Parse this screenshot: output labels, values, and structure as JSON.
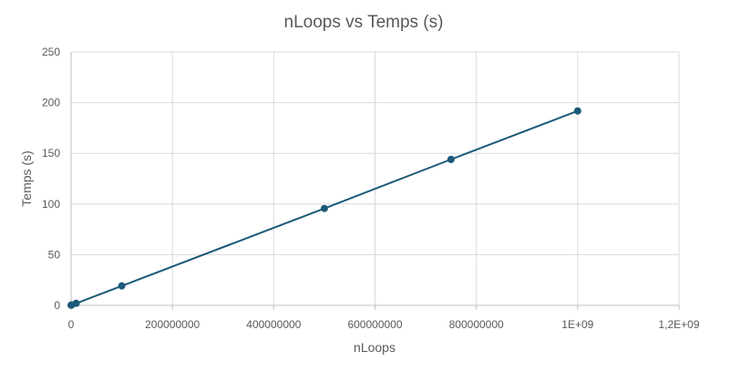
{
  "chart_data": {
    "type": "scatter",
    "title": "nLoops vs Temps (s)",
    "xlabel": "nLoops",
    "ylabel": "Temps (s)",
    "xlim": [
      0,
      1200000000
    ],
    "ylim": [
      0,
      250
    ],
    "x_ticks": [
      {
        "value": 0,
        "label": "0"
      },
      {
        "value": 200000000,
        "label": "200000000"
      },
      {
        "value": 400000000,
        "label": "400000000"
      },
      {
        "value": 600000000,
        "label": "600000000"
      },
      {
        "value": 800000000,
        "label": "800000000"
      },
      {
        "value": 1000000000,
        "label": "1E+09"
      },
      {
        "value": 1200000000,
        "label": "1,2E+09"
      }
    ],
    "y_ticks": [
      {
        "value": 0,
        "label": "0"
      },
      {
        "value": 50,
        "label": "50"
      },
      {
        "value": 100,
        "label": "100"
      },
      {
        "value": 150,
        "label": "150"
      },
      {
        "value": 200,
        "label": "200"
      },
      {
        "value": 250,
        "label": "250"
      }
    ],
    "grid": true,
    "legend": "none",
    "series_color": "#1b5a78",
    "series": [
      {
        "x": [
          0,
          1000000,
          10000000,
          100000000,
          500000000,
          750000000,
          1000000000
        ],
        "y": [
          0.2,
          0.4,
          2.0,
          19.2,
          95.6,
          144.0,
          191.8
        ]
      }
    ]
  }
}
